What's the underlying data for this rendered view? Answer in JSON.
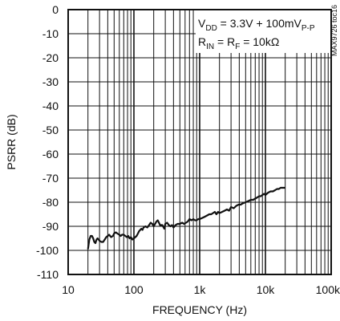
{
  "chart_data": {
    "type": "line",
    "title": "",
    "xlabel": "FREQUENCY (Hz)",
    "ylabel": "PSRR (dB)",
    "x_scale": "log",
    "xlim": [
      10,
      100000
    ],
    "ylim": [
      -110,
      0
    ],
    "grid": true,
    "x_tick_labels": [
      "10",
      "100",
      "1k",
      "10k",
      "100k"
    ],
    "x_tick_values": [
      10,
      100,
      1000,
      10000,
      100000
    ],
    "y_tick_values": [
      0,
      -10,
      -20,
      -30,
      -40,
      -50,
      -60,
      -70,
      -80,
      -90,
      -100,
      -110
    ],
    "y_tick_labels": [
      "0",
      "-10",
      "-20",
      "-30",
      "-40",
      "-50",
      "-60",
      "-70",
      "-80",
      "-90",
      "-100",
      "-110"
    ],
    "annotations": {
      "line1": {
        "main": "V",
        "sub1": "DD",
        "mid": " = 3.3V + 100mV",
        "sub2": "P-P"
      },
      "line2": {
        "main1": "R",
        "sub1": "IN",
        "mid": " = R",
        "sub2": "F",
        "end": " = 10kΩ"
      }
    },
    "side_label": "MAX9726 toc16",
    "series": [
      {
        "x": [
          20,
          21,
          22,
          23,
          24,
          25,
          26,
          27,
          28,
          30,
          32,
          34,
          36,
          38,
          40,
          42,
          45,
          48,
          50,
          53,
          56,
          60,
          63,
          66,
          70,
          74,
          78,
          82,
          86,
          90,
          95,
          100,
          105,
          110,
          115,
          120,
          125,
          130,
          135,
          140,
          150,
          160,
          170,
          180,
          190,
          200,
          210,
          220,
          230,
          240,
          250,
          270,
          290,
          300,
          320,
          340,
          360,
          380,
          400,
          430,
          460,
          500,
          540,
          580,
          620,
          660,
          700,
          750,
          800,
          850,
          900,
          950,
          1000,
          1100,
          1200,
          1300,
          1400,
          1500,
          1600,
          1700,
          1800,
          1900,
          2000,
          2200,
          2400,
          2600,
          2800,
          3000,
          3300,
          3600,
          3900,
          4200,
          4500,
          5000,
          5500,
          6000,
          6500,
          7000,
          7500,
          8000,
          8500,
          9000,
          9500,
          10000,
          11000,
          12000,
          13000,
          14000,
          15000,
          16000,
          17000,
          18000,
          19000,
          20000
        ],
        "y": [
          -99.5,
          -95.5,
          -94,
          -94,
          -95,
          -96.5,
          -97,
          -95.5,
          -95,
          -96,
          -96.5,
          -96.5,
          -95.5,
          -94.5,
          -94,
          -93.5,
          -94.5,
          -94,
          -93,
          -92.5,
          -93,
          -93.5,
          -94,
          -93.5,
          -93.5,
          -94,
          -94.5,
          -94,
          -95,
          -94.5,
          -95.5,
          -95,
          -94.5,
          -94,
          -93,
          -92,
          -91.5,
          -91,
          -91.5,
          -90.5,
          -90,
          -90.5,
          -89.5,
          -88.5,
          -89,
          -90,
          -89,
          -88,
          -87.5,
          -88.5,
          -89.5,
          -89.5,
          -91,
          -89,
          -88.5,
          -89.5,
          -90,
          -89.5,
          -90.5,
          -89.5,
          -89,
          -89,
          -88.5,
          -89,
          -88.5,
          -88,
          -87,
          -87.5,
          -87,
          -87.5,
          -87.5,
          -87,
          -87,
          -86.5,
          -86,
          -85.5,
          -85,
          -85,
          -84.5,
          -84,
          -85,
          -84,
          -84.5,
          -84,
          -83.5,
          -83,
          -83.5,
          -82,
          -82.5,
          -81.5,
          -81,
          -81,
          -80.5,
          -80,
          -79.5,
          -79,
          -79,
          -78.5,
          -78,
          -77.5,
          -77.5,
          -77,
          -76.5,
          -77,
          -76,
          -75.5,
          -75.5,
          -75,
          -74.5,
          -74.5,
          -74,
          -74,
          -74,
          -74
        ]
      }
    ]
  }
}
